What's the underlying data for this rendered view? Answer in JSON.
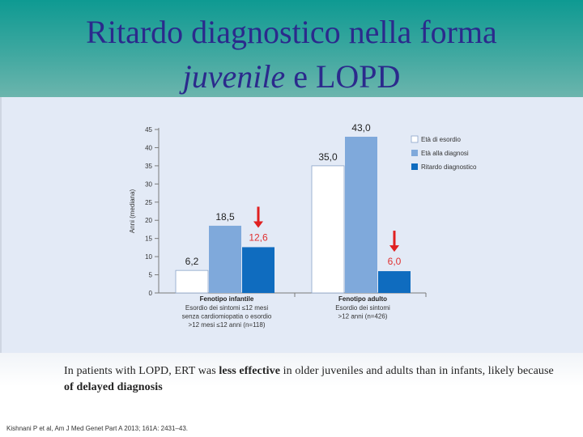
{
  "slide": {
    "title_line1": "Ritardo diagnostico nella forma",
    "title_line2_italic": "juvenile",
    "title_line2_rest": " e LOPD",
    "note_part1": "In patients with LOPD, ERT was ",
    "note_bold1": "less effective",
    "note_part2": " in older juveniles and adults than in infants, likely because ",
    "note_bold2": "of delayed diagnosis",
    "citation": "Kishnani P et al, Am J Med Genet Part A 2013; 161A: 2431–43."
  },
  "colors": {
    "onset": "#ffffff",
    "diagnosis": "#7fa9db",
    "delay": "#0f6cbf",
    "arrow": "#e02020",
    "delay_label": "#e03030",
    "value_label": "#222222"
  },
  "chart_data": {
    "type": "bar",
    "ylabel": "Anni (mediana)",
    "ylim": [
      0,
      45
    ],
    "yticks": [
      0,
      5,
      10,
      15,
      20,
      25,
      30,
      35,
      40,
      45
    ],
    "categories": [
      {
        "name": "Fenotipo infantile",
        "desc_lines": [
          "Esordio dei sintomi ≤12 mesi",
          "senza cardiomiopatia o esordio",
          ">12 mesi ≤12 anni (n=118)"
        ]
      },
      {
        "name": "Fenotipo adulto",
        "desc_lines": [
          "Esordio dei sintomi",
          ">12 anni (n=426)"
        ]
      }
    ],
    "series": [
      {
        "name": "Età di esordio",
        "values": [
          6.2,
          35.0
        ],
        "labels": [
          "6,2",
          "35,0"
        ]
      },
      {
        "name": "Età alla diagnosi",
        "values": [
          18.5,
          43.0
        ],
        "labels": [
          "18,5",
          "43,0"
        ]
      },
      {
        "name": "Ritardo diagnostico",
        "values": [
          12.6,
          6.0
        ],
        "labels": [
          "12,6",
          "6,0"
        ]
      }
    ]
  }
}
